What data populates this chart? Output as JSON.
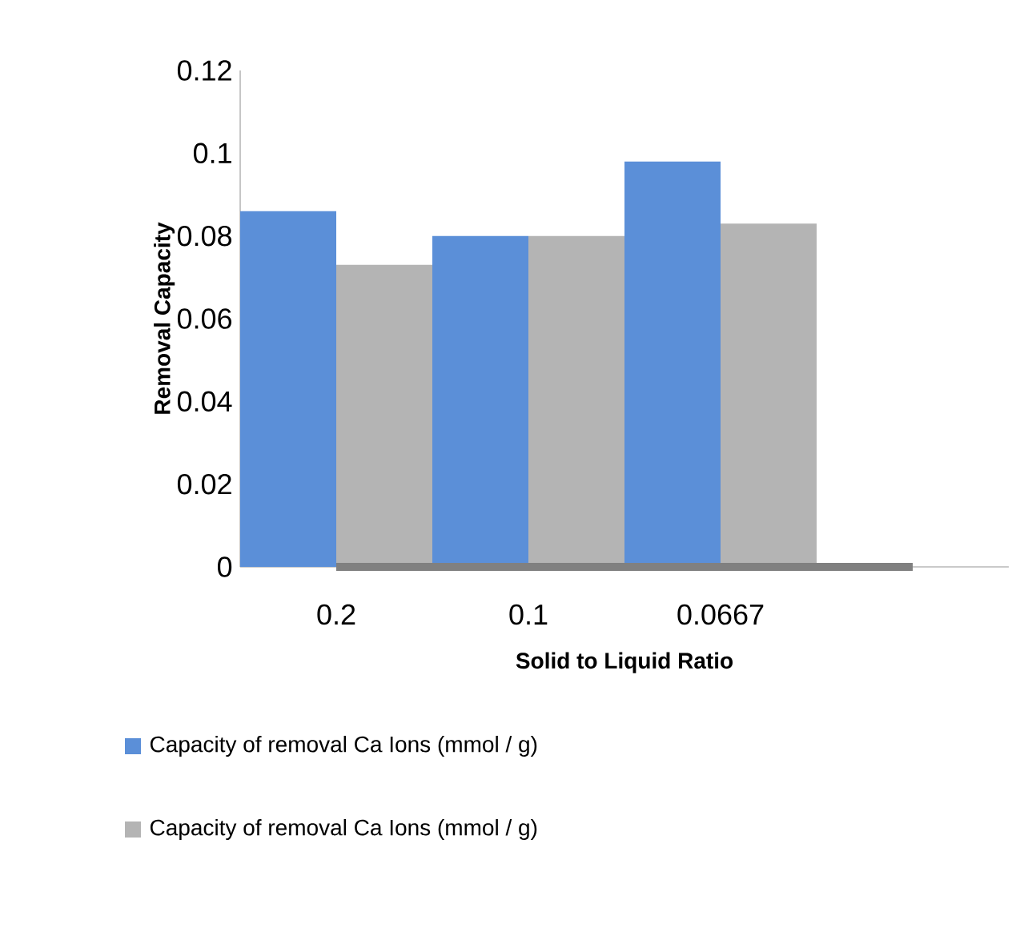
{
  "chart_data": {
    "type": "bar",
    "xlabel": "Solid to Liquid Ratio",
    "ylabel": "Removal Capacity",
    "categories": [
      "0.2",
      "0.1",
      "0.0667",
      null
    ],
    "series": [
      {
        "name": "Capacity of removal Ca Ions (mmol / g)",
        "color": "#5b8fd8",
        "values": [
          0.086,
          0.08,
          0.098,
          null
        ]
      },
      {
        "name": "Capacity of removal Ca Ions (mmol / g)",
        "color": "#b4b4b4",
        "values": [
          0.073,
          0.08,
          0.083,
          null
        ]
      },
      {
        "type": "line",
        "color": "#808080",
        "values": [
          0,
          0,
          0,
          0
        ]
      }
    ],
    "ylim": [
      0,
      0.12
    ],
    "yticks": [
      0,
      0.02,
      0.04,
      0.06,
      0.08,
      0.1,
      0.12
    ],
    "grid": false,
    "legend": "bottom"
  }
}
